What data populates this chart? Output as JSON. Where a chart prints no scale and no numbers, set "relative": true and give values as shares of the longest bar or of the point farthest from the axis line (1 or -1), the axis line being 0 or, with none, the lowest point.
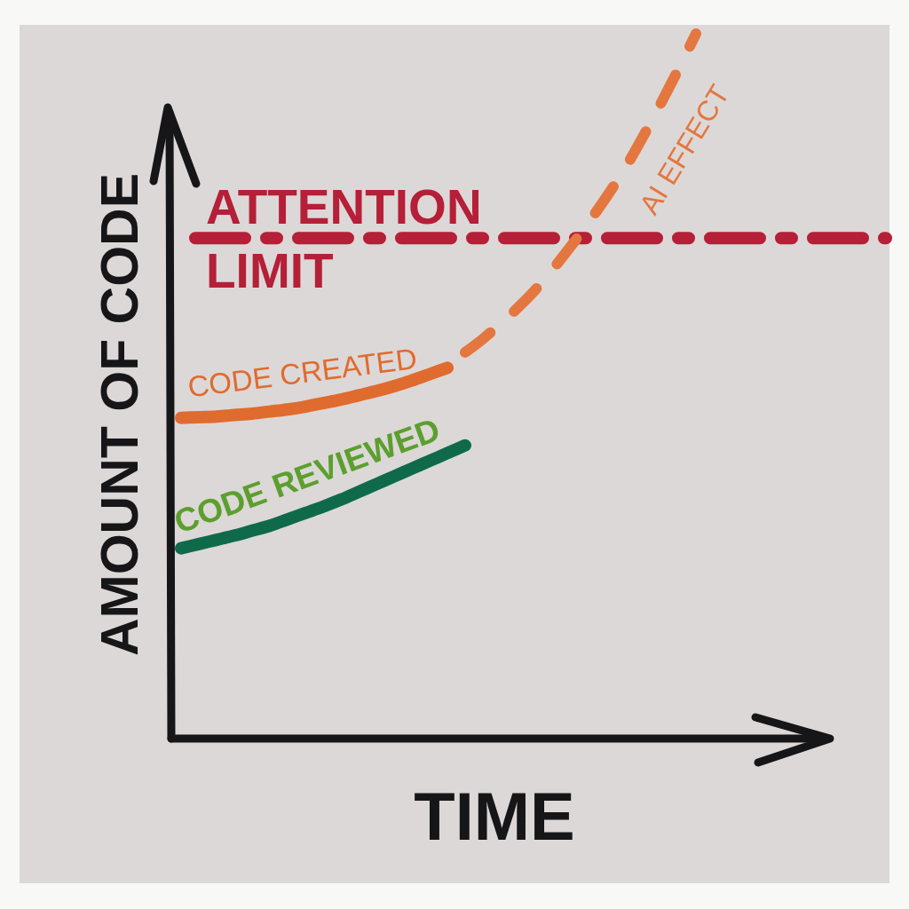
{
  "chart_data": {
    "type": "line",
    "relative": true,
    "xlabel": "TIME",
    "ylabel": "AMOUNT OF CODE",
    "categories": [
      null,
      null,
      null,
      null,
      null,
      null,
      null,
      null,
      null,
      null,
      null,
      null,
      null,
      null,
      null,
      null,
      null,
      null,
      null,
      null,
      null,
      null,
      null,
      null,
      null,
      null,
      null,
      null,
      null,
      null,
      null,
      null,
      null,
      null,
      null,
      null,
      null
    ],
    "series": [
      {
        "name": "CODE CREATED",
        "color": "#e06b2f",
        "values": [
          0.455,
          0.456,
          0.457,
          0.459,
          0.461,
          0.464,
          0.467,
          0.471,
          0.476,
          0.481,
          0.487,
          0.493,
          0.5,
          0.508,
          0.517,
          0.526,
          null,
          null,
          null,
          null,
          null,
          null,
          null,
          null,
          null,
          null,
          null,
          null,
          null,
          null,
          null,
          null,
          null,
          null,
          null,
          null,
          null
        ]
      },
      {
        "name": "AI EFFECT",
        "color": "#e4773f",
        "line_style": "dashed",
        "values": [
          null,
          null,
          null,
          null,
          null,
          null,
          null,
          null,
          null,
          null,
          null,
          null,
          null,
          null,
          null,
          null,
          0.548,
          0.567,
          0.589,
          0.612,
          0.638,
          0.668,
          0.7,
          0.734,
          0.77,
          0.809,
          0.853,
          0.9,
          0.949,
          1,
          null,
          null,
          null,
          null,
          null,
          null,
          null
        ]
      },
      {
        "name": "CODE REVIEWED",
        "color": "#0f6a4c",
        "values": [
          0.27,
          0.276,
          0.282,
          0.288,
          0.295,
          0.302,
          0.311,
          0.32,
          0.329,
          0.339,
          0.35,
          0.361,
          0.372,
          0.383,
          0.394,
          0.405,
          0.416,
          null,
          null,
          null,
          null,
          null,
          null,
          null,
          null,
          null,
          null,
          null,
          null,
          null,
          null,
          null,
          null,
          null,
          null,
          null,
          null
        ]
      }
    ],
    "ref_lines": [
      {
        "axis": "y",
        "value": 0.71,
        "label": "ATTENTION LIMIT",
        "color": "#b51f37",
        "line_style": "dashed"
      }
    ]
  }
}
